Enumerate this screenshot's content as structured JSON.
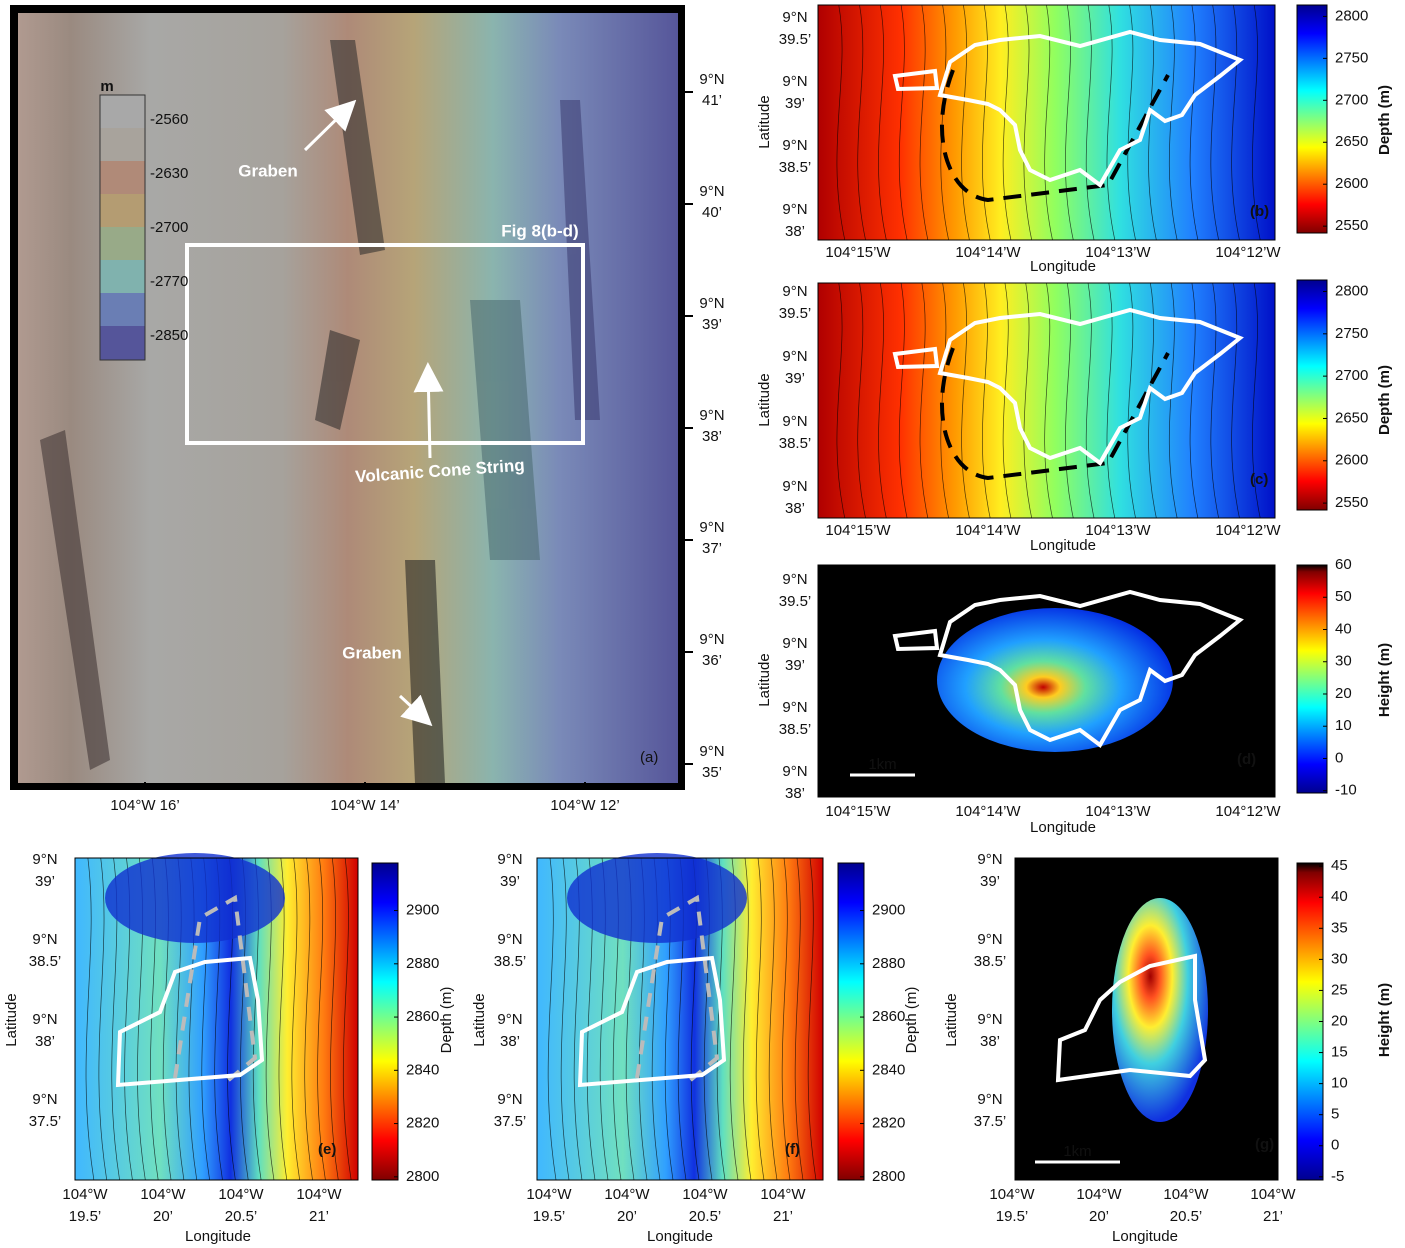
{
  "panel_a": {
    "label": "(a)",
    "legend": {
      "title": "m",
      "ticks": [
        -2560,
        -2630,
        -2700,
        -2770,
        -2850
      ]
    },
    "yticks": [
      [
        "9°N",
        "41’"
      ],
      [
        "9°N",
        "40’"
      ],
      [
        "9°N",
        "39’"
      ],
      [
        "9°N",
        "38’"
      ],
      [
        "9°N",
        "37’"
      ],
      [
        "9°N",
        "36’"
      ],
      [
        "9°N",
        "35’"
      ]
    ],
    "xticks": [
      [
        "104°W 16’"
      ],
      [
        "104°W 14’"
      ],
      [
        "104°W 12’"
      ]
    ],
    "annotations": [
      "Graben",
      "Fig 8(b-d)",
      "Volcanic Cone String",
      "Graben"
    ]
  },
  "panels": [
    {
      "label": "(b)",
      "ylabel": "Latitude",
      "xlabel": "Longitude",
      "yticks": [
        [
          "9°N",
          "39.5’"
        ],
        [
          "9°N",
          "39’"
        ],
        [
          "9°N",
          "38.5’"
        ],
        [
          "9°N",
          "38’"
        ]
      ],
      "xticks": [
        [
          "104°15’W"
        ],
        [
          "104°14’W"
        ],
        [
          "104°13’W"
        ],
        [
          "104°12’W"
        ]
      ],
      "colorbar": {
        "label": "Depth (m)",
        "ticks": [
          2800,
          2750,
          2700,
          2650,
          2600,
          2550
        ]
      }
    },
    {
      "label": "(c)",
      "ylabel": "Latitude",
      "xlabel": "Longitude",
      "yticks": [
        [
          "9°N",
          "39.5’"
        ],
        [
          "9°N",
          "39’"
        ],
        [
          "9°N",
          "38.5’"
        ],
        [
          "9°N",
          "38’"
        ]
      ],
      "xticks": [
        [
          "104°15’W"
        ],
        [
          "104°14’W"
        ],
        [
          "104°13’W"
        ],
        [
          "104°12’W"
        ]
      ],
      "colorbar": {
        "label": "Depth (m)",
        "ticks": [
          2800,
          2750,
          2700,
          2650,
          2600,
          2550
        ]
      }
    },
    {
      "label": "(d)",
      "ylabel": "Latitude",
      "xlabel": "Longitude",
      "scale_bar": "1km",
      "yticks": [
        [
          "9°N",
          "39.5’"
        ],
        [
          "9°N",
          "39’"
        ],
        [
          "9°N",
          "38.5’"
        ],
        [
          "9°N",
          "38’"
        ]
      ],
      "xticks": [
        [
          "104°15’W"
        ],
        [
          "104°14’W"
        ],
        [
          "104°13’W"
        ],
        [
          "104°12’W"
        ]
      ],
      "colorbar": {
        "label": "Height (m)",
        "ticks": [
          60,
          50,
          40,
          30,
          20,
          10,
          0,
          -10
        ]
      }
    },
    {
      "label": "(e)",
      "ylabel": "Latitude",
      "xlabel": "Longitude",
      "yticks": [
        [
          "9°N",
          "39’"
        ],
        [
          "9°N",
          "38.5’"
        ],
        [
          "9°N",
          "38’"
        ],
        [
          "9°N",
          "37.5’"
        ]
      ],
      "xticks": [
        [
          "104°W",
          "19.5’"
        ],
        [
          "104°W",
          "20’"
        ],
        [
          "104°W",
          "20.5’"
        ],
        [
          "104°W",
          "21’"
        ]
      ],
      "colorbar": {
        "label": "Depth (m)",
        "ticks": [
          2900,
          2880,
          2860,
          2840,
          2820,
          2800
        ]
      }
    },
    {
      "label": "(f)",
      "ylabel": "Latitude",
      "xlabel": "Longitude",
      "yticks": [
        [
          "9°N",
          "39’"
        ],
        [
          "9°N",
          "38.5’"
        ],
        [
          "9°N",
          "38’"
        ],
        [
          "9°N",
          "37.5’"
        ]
      ],
      "xticks": [
        [
          "104°W",
          "19.5’"
        ],
        [
          "104°W",
          "20’"
        ],
        [
          "104°W",
          "20.5’"
        ],
        [
          "104°W",
          "21’"
        ]
      ],
      "colorbar": {
        "label": "Depth (m)",
        "ticks": [
          2900,
          2880,
          2860,
          2840,
          2820,
          2800
        ]
      }
    },
    {
      "label": "(g)",
      "ylabel": "Latitude",
      "xlabel": "Longitude",
      "scale_bar": "1km",
      "yticks": [
        [
          "9°N",
          "39’"
        ],
        [
          "9°N",
          "38.5’"
        ],
        [
          "9°N",
          "38’"
        ],
        [
          "9°N",
          "37.5’"
        ]
      ],
      "xticks": [
        [
          "104°W",
          "19.5’"
        ],
        [
          "104°W",
          "20’"
        ],
        [
          "104°W",
          "20.5’"
        ],
        [
          "104°W",
          "21’"
        ]
      ],
      "colorbar": {
        "label": "Height (m)",
        "ticks": [
          45,
          40,
          35,
          30,
          25,
          20,
          15,
          10,
          5,
          0,
          -5
        ]
      }
    }
  ]
}
